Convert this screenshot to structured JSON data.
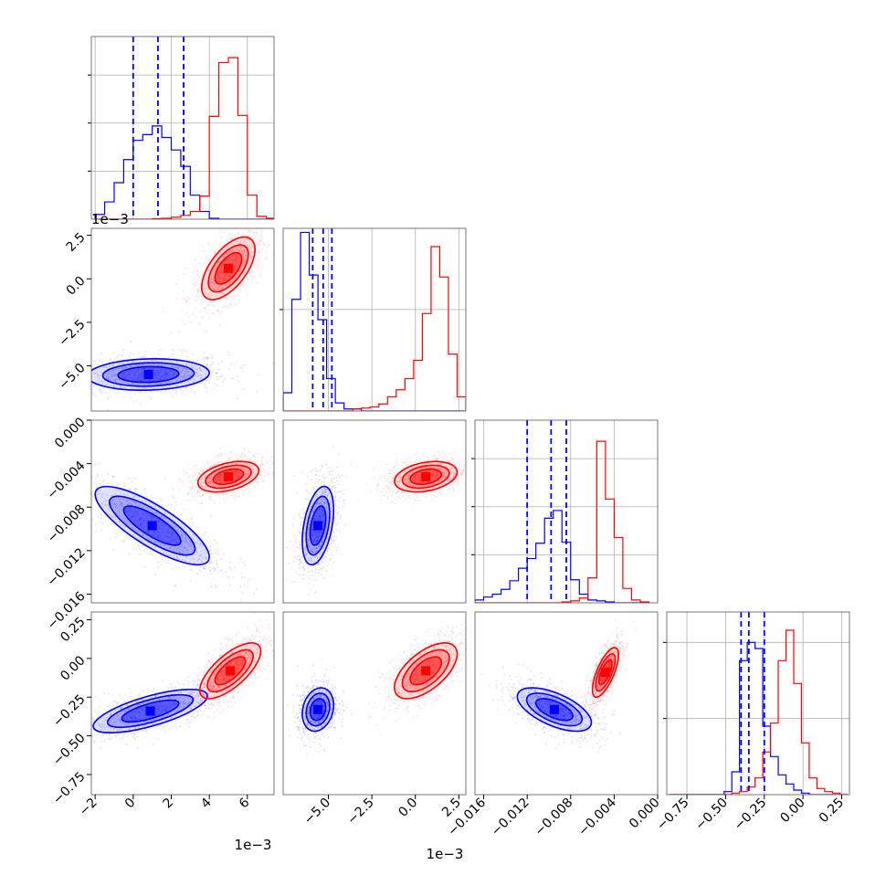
{
  "colors": {
    "series_a": "#0000ff",
    "series_b": "#ff0000",
    "grid": "#b0b0b0",
    "frame": "#000000"
  },
  "offset_labels": {
    "x_param0": "1e−3",
    "x_param1": "1e−3",
    "y_param1": "1e−3"
  },
  "chart_data": {
    "type": "corner",
    "grid": true,
    "legend": "none",
    "parameters": [
      {
        "range": [
          -2.2,
          7.4
        ],
        "ticks": [
          -2,
          0,
          2,
          4,
          6
        ],
        "tick_labels": [
          "−2",
          "0",
          "2",
          "4",
          "6"
        ],
        "offset": "1e−3",
        "quantiles_a": [
          0.0,
          1.3,
          2.65
        ],
        "bins": [
          -1.75,
          -1.25,
          -0.75,
          -0.25,
          0.25,
          0.75,
          1.25,
          1.75,
          2.25,
          2.75,
          3.25,
          3.75,
          4.25,
          4.75,
          5.25,
          5.75,
          6.25,
          6.75,
          7.25
        ],
        "hist_a": [
          0.05,
          0.18,
          0.38,
          0.62,
          0.82,
          0.88,
          0.97,
          0.85,
          0.72,
          0.55,
          0.25,
          0.08,
          0.01,
          0,
          0,
          0,
          0,
          0,
          0
        ],
        "hist_b": [
          0,
          0,
          0,
          0,
          0,
          0,
          0.005,
          0.01,
          0.02,
          0.04,
          0.08,
          0.24,
          1.07,
          1.63,
          1.68,
          1.08,
          0.25,
          0.03,
          0.01
        ]
      },
      {
        "range": [
          -7.6,
          2.9
        ],
        "ticks": [
          -5.0,
          -2.5,
          0.0,
          2.5
        ],
        "tick_labels": [
          "−5.0",
          "−2.5",
          "0.0",
          "2.5"
        ],
        "offset": "1e−3",
        "quantiles_a": [
          -5.9,
          -5.3,
          -4.8
        ],
        "bins": [
          -7.35,
          -6.85,
          -6.35,
          -5.85,
          -5.35,
          -4.85,
          -4.35,
          -3.85,
          -3.35,
          -2.85,
          -2.35,
          -1.85,
          -1.35,
          -0.85,
          -0.35,
          0.15,
          0.65,
          1.15,
          1.65,
          2.15,
          2.65
        ],
        "hist_a": [
          0.09,
          0.55,
          0.88,
          0.67,
          0.45,
          0.16,
          0.04,
          0.01,
          0.01,
          0,
          0,
          0,
          0,
          0,
          0,
          0,
          0,
          0,
          0,
          0,
          0
        ],
        "hist_b": [
          0,
          0,
          0,
          0,
          0,
          0,
          0,
          0,
          0.01,
          0.015,
          0.02,
          0.035,
          0.07,
          0.105,
          0.16,
          0.25,
          0.48,
          0.81,
          0.66,
          0.28,
          0.07
        ]
      },
      {
        "range": [
          -0.0168,
          0.0
        ],
        "ticks": [
          -0.016,
          -0.012,
          -0.008,
          -0.004,
          0.0
        ],
        "tick_labels": [
          "−0.016",
          "−0.012",
          "−0.008",
          "−0.004",
          "0.000"
        ],
        "y_tick_labels": [
          "−0.016",
          "−0.012",
          "−0.008",
          "−0.004",
          "0.000"
        ],
        "offset": "",
        "quantiles_a": [
          -0.012,
          -0.0098,
          -0.0084
        ],
        "bins": [
          -0.0164,
          -0.0156,
          -0.0148,
          -0.014,
          -0.0132,
          -0.0124,
          -0.0116,
          -0.0108,
          -0.01,
          -0.0092,
          -0.0084,
          -0.0076,
          -0.0068,
          -0.006,
          -0.0052,
          -0.0044,
          -0.0036,
          -0.0028,
          -0.002,
          -0.0012
        ],
        "hist_a": [
          0.03,
          0.06,
          0.09,
          0.14,
          0.23,
          0.36,
          0.46,
          0.62,
          0.88,
          0.96,
          0.63,
          0.24,
          0.09,
          0.03,
          0.02,
          0.01,
          0,
          0,
          0,
          0
        ],
        "hist_b": [
          0,
          0,
          0,
          0,
          0,
          0,
          0,
          0,
          0,
          0,
          0.01,
          0.02,
          0.05,
          0.26,
          1.68,
          1.08,
          0.68,
          0.15,
          0.03,
          0.01
        ]
      },
      {
        "range": [
          -0.88,
          0.3
        ],
        "ticks": [
          -0.75,
          -0.5,
          -0.25,
          0.0,
          0.25
        ],
        "tick_labels": [
          "−0.75",
          "−0.50",
          "−0.25",
          "0.00",
          "0.25"
        ],
        "offset": "",
        "quantiles_a": [
          -0.4,
          -0.35,
          -0.25
        ],
        "bins": [
          -0.835,
          -0.785,
          -0.735,
          -0.685,
          -0.635,
          -0.585,
          -0.535,
          -0.485,
          -0.435,
          -0.385,
          -0.335,
          -0.285,
          -0.235,
          -0.185,
          -0.135,
          -0.085,
          -0.035,
          0.015,
          0.065,
          0.115,
          0.165,
          0.215,
          0.265
        ],
        "hist_a": [
          0,
          0,
          0,
          0,
          0,
          0,
          0,
          0.02,
          0.15,
          0.88,
          1.0,
          0.96,
          0.45,
          0.25,
          0.13,
          0.07,
          0.03,
          0.01,
          0,
          0,
          0,
          0,
          0
        ],
        "hist_b": [
          0,
          0,
          0,
          0,
          0,
          0,
          0,
          0,
          0.01,
          0.02,
          0.05,
          0.11,
          0.28,
          0.47,
          0.88,
          1.08,
          0.73,
          0.34,
          0.11,
          0.04,
          0.02,
          0.01,
          0
        ]
      }
    ],
    "pairs": [
      {
        "x": 0,
        "y": 1,
        "a": {
          "mean": [
            0.8,
            -5.5
          ],
          "sd": [
            1.6,
            0.45
          ],
          "rho": 0.1
        },
        "b": {
          "mean": [
            5.0,
            0.6
          ],
          "sd": [
            0.7,
            0.9
          ],
          "rho": 0.6
        }
      },
      {
        "x": 0,
        "y": 2,
        "a": {
          "mean": [
            1.0,
            -0.0097
          ],
          "sd": [
            1.5,
            0.0018
          ],
          "rho": -0.8
        },
        "b": {
          "mean": [
            5.0,
            -0.0052
          ],
          "sd": [
            0.8,
            0.0007
          ],
          "rho": 0.4
        }
      },
      {
        "x": 0,
        "y": 3,
        "a": {
          "mean": [
            0.9,
            -0.34
          ],
          "sd": [
            1.5,
            0.07
          ],
          "rho": 0.7
        },
        "b": {
          "mean": [
            5.1,
            -0.08
          ],
          "sd": [
            0.8,
            0.09
          ],
          "rho": 0.7
        }
      },
      {
        "x": 1,
        "y": 2,
        "a": {
          "mean": [
            -5.6,
            -0.0097
          ],
          "sd": [
            0.45,
            0.0018
          ],
          "rho": 0.4
        },
        "b": {
          "mean": [
            0.6,
            -0.0052
          ],
          "sd": [
            0.9,
            0.0007
          ],
          "rho": 0.3
        }
      },
      {
        "x": 1,
        "y": 3,
        "a": {
          "mean": [
            -5.6,
            -0.33
          ],
          "sd": [
            0.45,
            0.07
          ],
          "rho": 0.2
        },
        "b": {
          "mean": [
            0.6,
            -0.08
          ],
          "sd": [
            0.9,
            0.09
          ],
          "rho": 0.6
        }
      },
      {
        "x": 2,
        "y": 3,
        "a": {
          "mean": [
            -0.0095,
            -0.33
          ],
          "sd": [
            0.0017,
            0.07
          ],
          "rho": -0.6
        },
        "b": {
          "mean": [
            -0.0048,
            -0.09
          ],
          "sd": [
            0.0006,
            0.08
          ],
          "rho": 0.7
        }
      }
    ],
    "diag_y": {
      "max": [
        1.9,
        0.9,
        1.9,
        1.2
      ],
      "ticks": [
        0.5,
        1.0,
        1.5
      ]
    }
  }
}
